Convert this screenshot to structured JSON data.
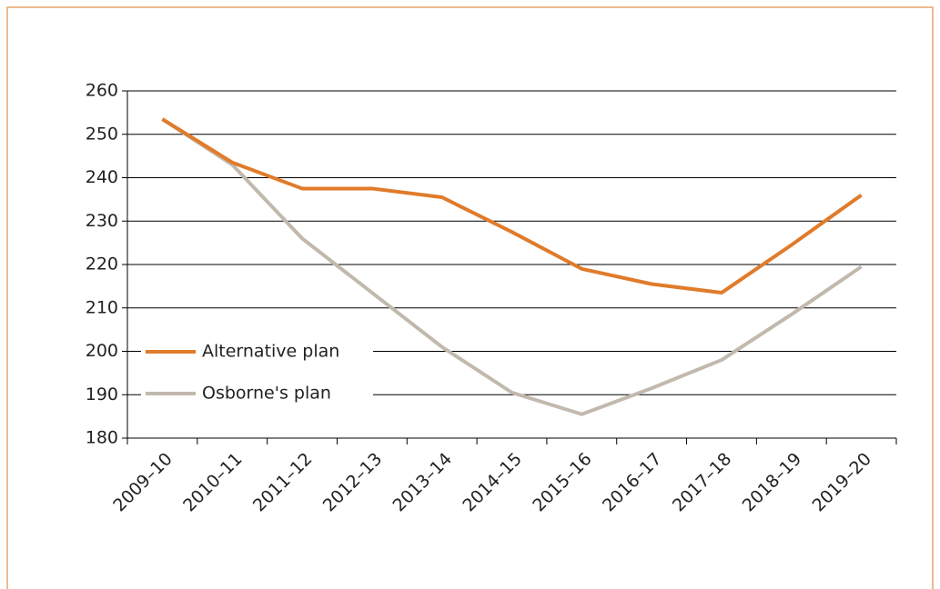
{
  "chart_data": {
    "type": "line",
    "categories": [
      "2009–10",
      "2010–11",
      "2011–12",
      "2012–13",
      "2013–14",
      "2014–15",
      "2015–16",
      "2016–17",
      "2017–18",
      "2018–19",
      "2019–20"
    ],
    "series": [
      {
        "name": "Alternative plan",
        "color": "#e07b2a",
        "values": [
          253.5,
          243.5,
          237.5,
          237.5,
          235.5,
          227.5,
          219,
          215.5,
          213.5,
          224.5,
          236
        ]
      },
      {
        "name": "Osborne's plan",
        "color": "#c2b9ad",
        "values": [
          253.5,
          243,
          226,
          213.5,
          201,
          190.5,
          185.5,
          191.5,
          198,
          208.5,
          219.5
        ]
      }
    ],
    "ylim": [
      180,
      260
    ],
    "yticks": [
      180,
      190,
      200,
      210,
      220,
      230,
      240,
      250,
      260
    ],
    "grid": true,
    "legend": "left"
  }
}
